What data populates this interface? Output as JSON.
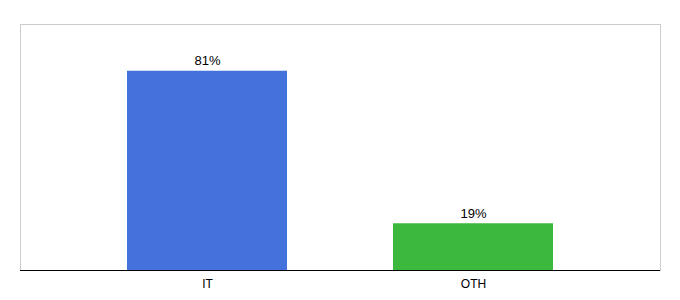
{
  "chart_data": {
    "type": "bar",
    "categories": [
      "IT",
      "OTH"
    ],
    "values": [
      81,
      19
    ],
    "value_labels": [
      "81%",
      "19%"
    ],
    "colors": [
      "#4472DD",
      "#3CB83C"
    ],
    "data_labels": true,
    "ylim": [
      0,
      100
    ],
    "tick_labels": "x"
  }
}
